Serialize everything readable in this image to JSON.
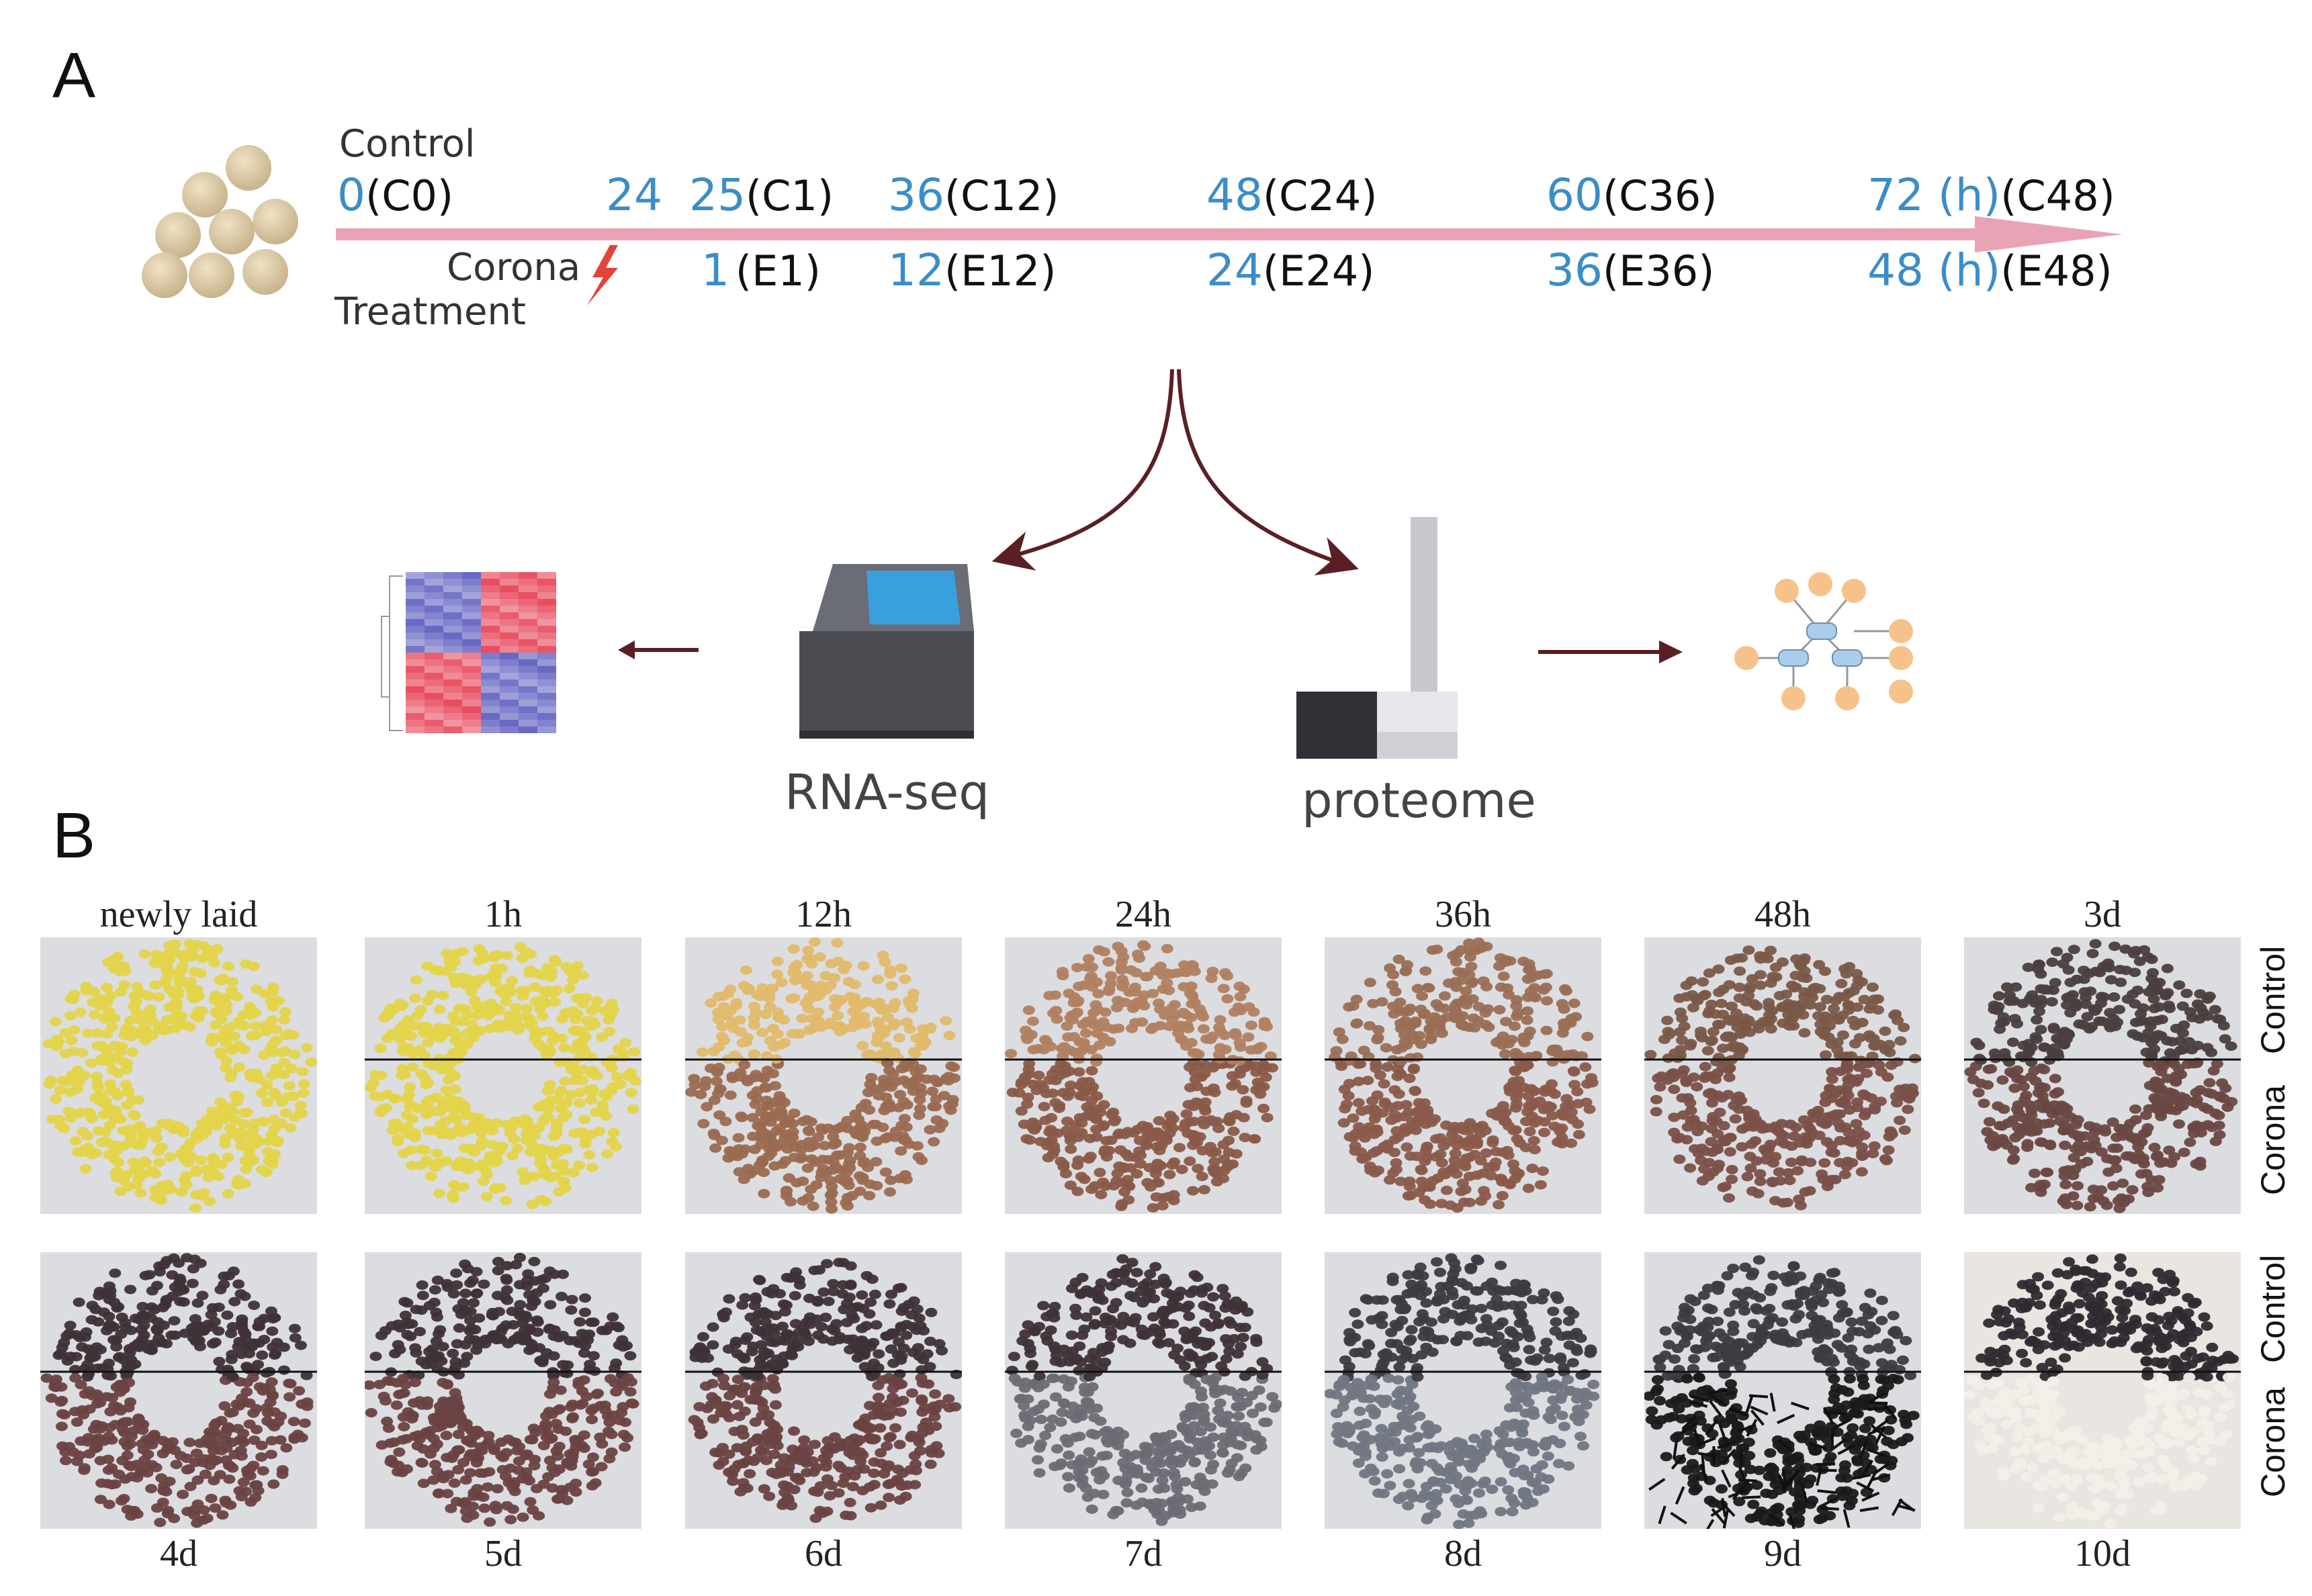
{
  "panels": {
    "a_label": "A",
    "b_label": "B"
  },
  "timeline": {
    "control_label": "Control",
    "corona_label": "Corona",
    "treatment_label": "Treatment",
    "top_points": [
      {
        "num": "0",
        "code": "(C0)"
      },
      {
        "num": "24",
        "code": ""
      },
      {
        "num": "25",
        "code": "(C1)"
      },
      {
        "num": "36",
        "code": "(C12)"
      },
      {
        "num": "48",
        "code": "(C24)"
      },
      {
        "num": "60",
        "code": "(C36)"
      },
      {
        "num": "72 (h)",
        "code": "(C48)"
      }
    ],
    "bottom_points": [
      {
        "num": "1",
        "code": "(E1)"
      },
      {
        "num": "12",
        "code": "(E12)"
      },
      {
        "num": "24",
        "code": "(E24)"
      },
      {
        "num": "36",
        "code": "(E36)"
      },
      {
        "num": "48 (h)",
        "code": "(E48)"
      }
    ],
    "colors": {
      "arrow": "#e8a4b4",
      "numbers": "#3a8dc8",
      "lightning": "#e0443a"
    }
  },
  "methods": {
    "rnaseq_label": "RNA-seq",
    "proteome_label": "proteome"
  },
  "photos": {
    "row1_captions": [
      "newly laid",
      "1h",
      "12h",
      "24h",
      "36h",
      "48h",
      "3d"
    ],
    "row2_captions": [
      "4d",
      "5d",
      "6d",
      "7d",
      "8d",
      "9d",
      "10d"
    ],
    "side_labels": {
      "control": "Control",
      "corona": "Corona"
    }
  }
}
